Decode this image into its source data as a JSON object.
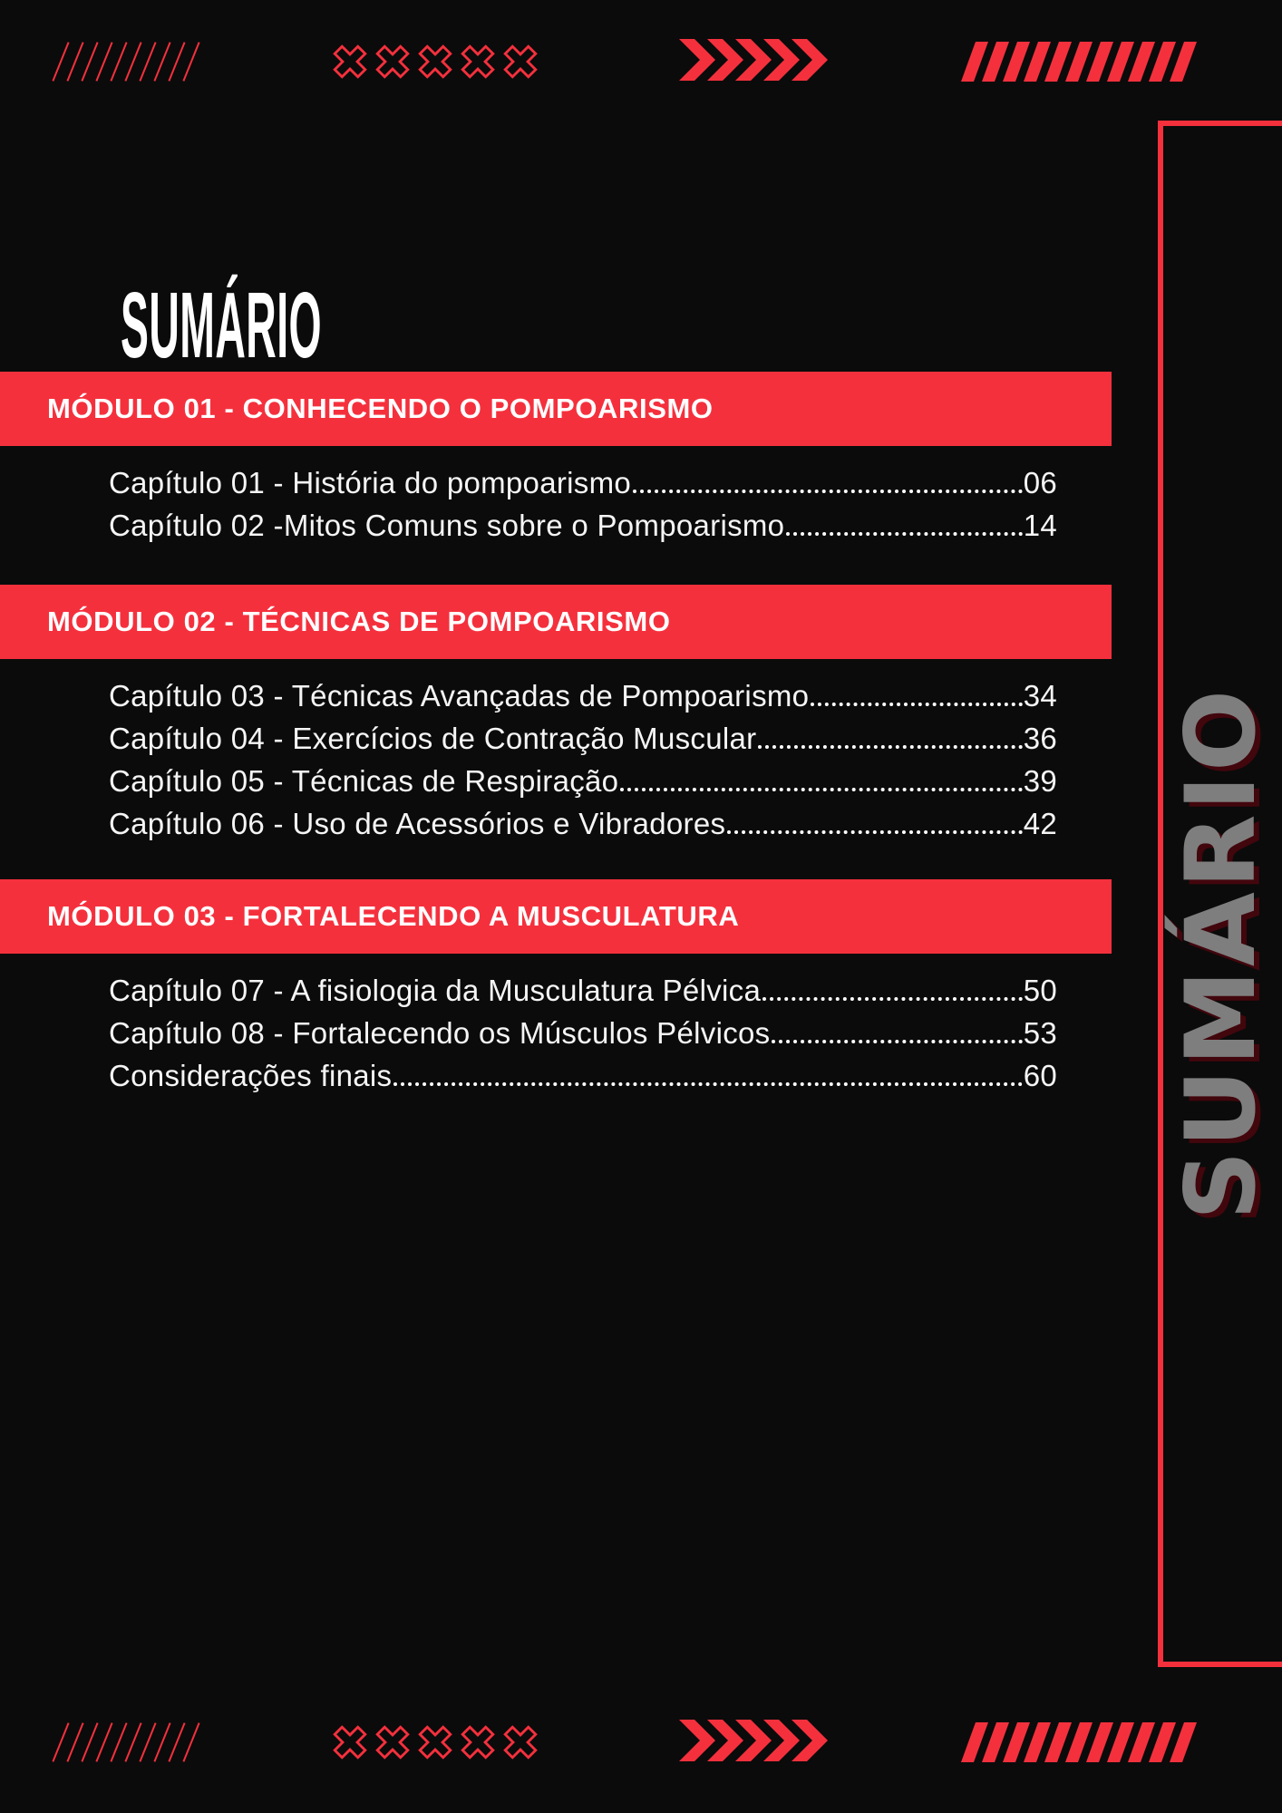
{
  "page": {
    "title": "SUMÁRIO",
    "side_label": "SUMÁRIO"
  },
  "colors": {
    "background": "#0b0b0b",
    "accent": "#f5303d",
    "banner_text": "#ffffff",
    "entry_text": "#f5f5f5",
    "side_label_gray": "#7e7e7e",
    "side_label_shadow": "#42060d"
  },
  "modules": [
    {
      "banner": "MÓDULO 01 - CONHECENDO O POMPOARISMO",
      "entries": [
        {
          "label": "Capítulo 01 - História do pompoarismo",
          "page": "06"
        },
        {
          "label": "Capítulo 02 -Mitos Comuns sobre o Pompoarismo",
          "page": "14"
        }
      ]
    },
    {
      "banner": "MÓDULO 02 - TÉCNICAS DE POMPOARISMO",
      "entries": [
        {
          "label": "Capítulo 03 - Técnicas Avançadas de Pompoarismo",
          "page": "34"
        },
        {
          "label": "Capítulo 04 - Exercícios de Contração Muscular",
          "page": "36"
        },
        {
          "label": "Capítulo 05 - Técnicas de Respiração",
          "page": "39"
        },
        {
          "label": "Capítulo 06 - Uso de Acessórios e Vibradores",
          "page": "42"
        }
      ]
    },
    {
      "banner": "MÓDULO 03 - FORTALECENDO A MUSCULATURA",
      "entries": [
        {
          "label": "Capítulo 07 - A fisiologia da Musculatura Pélvica",
          "page": "50"
        },
        {
          "label": "Capítulo 08 - Fortalecendo os Músculos Pélvicos",
          "page": "53"
        },
        {
          "label": "Considerações finais",
          "page": "60"
        }
      ]
    }
  ],
  "decor": {
    "groups": [
      {
        "name": "diagonal-lines-icon"
      },
      {
        "name": "x-cross-pattern-icon"
      },
      {
        "name": "chevron-arrows-icon"
      },
      {
        "name": "hazard-stripes-icon"
      }
    ]
  }
}
